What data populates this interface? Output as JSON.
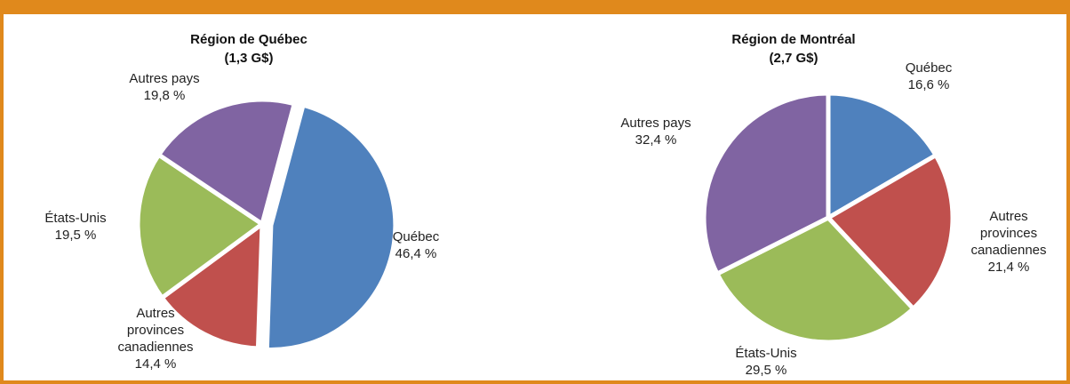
{
  "chart_data": [
    {
      "type": "pie",
      "title": "Région de Québec",
      "subtitle": "(1,3 G$)",
      "categories": [
        "Québec",
        "Autres provinces canadiennes",
        "États-Unis",
        "Autres pays"
      ],
      "values": [
        46.4,
        14.4,
        19.5,
        19.8
      ],
      "value_labels": [
        "46,4 %",
        "14,4 %",
        "19,5 %",
        "19,8 %"
      ],
      "colors": [
        "#4f81bd",
        "#c0504d",
        "#9bbb59",
        "#8064a2"
      ]
    },
    {
      "type": "pie",
      "title": "Région de Montréal",
      "subtitle": "(2,7 G$)",
      "categories": [
        "Québec",
        "Autres provinces canadiennes",
        "États-Unis",
        "Autres pays"
      ],
      "values": [
        16.6,
        21.4,
        29.5,
        32.4
      ],
      "value_labels": [
        "16,6 %",
        "21,4 %",
        "29,5 %",
        "32,4 %"
      ],
      "colors": [
        "#4f81bd",
        "#c0504d",
        "#9bbb59",
        "#8064a2"
      ]
    }
  ]
}
